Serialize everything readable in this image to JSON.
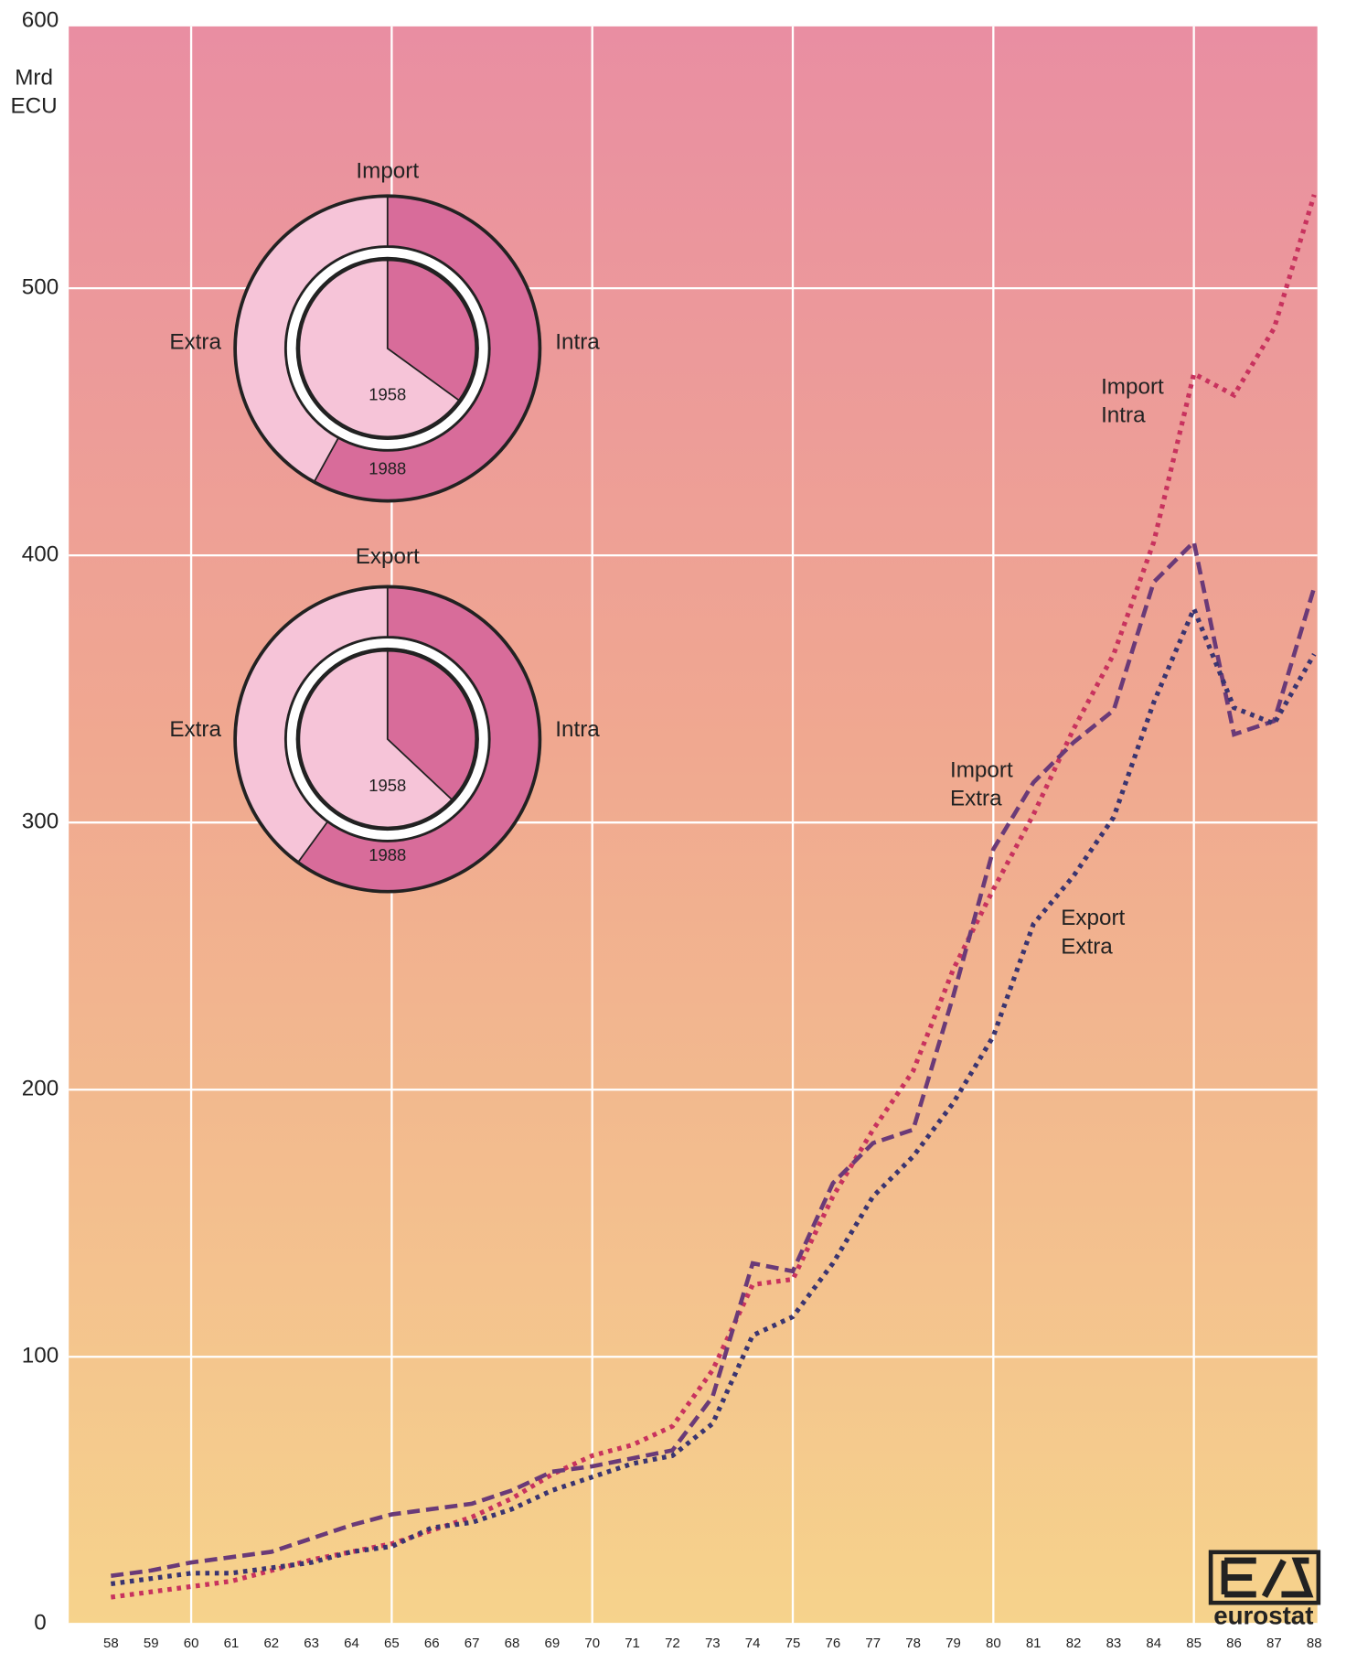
{
  "chart_data": [
    {
      "type": "line",
      "y_label": "Mrd ECU",
      "x": [
        58,
        59,
        60,
        61,
        62,
        63,
        64,
        65,
        66,
        67,
        68,
        69,
        70,
        71,
        72,
        73,
        74,
        75,
        76,
        77,
        78,
        79,
        80,
        81,
        82,
        83,
        84,
        85,
        86,
        87,
        88
      ],
      "xlim": [
        58,
        88
      ],
      "xticks": [
        58,
        59,
        60,
        61,
        62,
        63,
        64,
        65,
        66,
        67,
        68,
        69,
        70,
        71,
        72,
        73,
        74,
        75,
        76,
        77,
        78,
        79,
        80,
        81,
        82,
        83,
        84,
        85,
        86,
        87,
        88
      ],
      "ylim": [
        0,
        600
      ],
      "yticks": [
        0,
        100,
        200,
        300,
        400,
        500,
        600
      ],
      "grid": true,
      "series": [
        {
          "name": "Import Intra",
          "color": "#c8325e",
          "style": "dotted",
          "values": [
            10,
            12,
            14,
            16,
            20,
            24,
            27,
            30,
            35,
            40,
            47,
            56,
            63,
            67,
            74,
            95,
            127,
            129,
            160,
            185,
            207,
            245,
            275,
            303,
            335,
            363,
            405,
            468,
            460,
            485,
            535
          ]
        },
        {
          "name": "Import Extra",
          "color": "#6a3a78",
          "style": "dashed",
          "values": [
            18,
            20,
            23,
            25,
            27,
            32,
            37,
            41,
            43,
            45,
            50,
            57,
            59,
            62,
            65,
            85,
            135,
            132,
            165,
            180,
            185,
            235,
            290,
            315,
            330,
            342,
            390,
            405,
            333,
            338,
            388
          ]
        },
        {
          "name": "Export Extra",
          "color": "#3a3470",
          "style": "dotted",
          "values": [
            15,
            17,
            19,
            19,
            21,
            23,
            27,
            29,
            36,
            38,
            43,
            50,
            55,
            60,
            63,
            75,
            108,
            115,
            135,
            160,
            175,
            195,
            220,
            262,
            280,
            302,
            345,
            380,
            343,
            337,
            363
          ]
        }
      ]
    },
    {
      "type": "donut",
      "title": "Import",
      "categories": [
        "Intra",
        "Extra"
      ],
      "colors": [
        "#d86c9a",
        "#f6c4d8"
      ],
      "rings": [
        {
          "name": "1958",
          "values": [
            35,
            65
          ]
        },
        {
          "name": "1988",
          "values": [
            58,
            42
          ]
        }
      ]
    },
    {
      "type": "donut",
      "title": "Export",
      "categories": [
        "Intra",
        "Extra"
      ],
      "colors": [
        "#d86c9a",
        "#f6c4d8"
      ],
      "rings": [
        {
          "name": "1958",
          "values": [
            37,
            63
          ]
        },
        {
          "name": "1988",
          "values": [
            60,
            40
          ]
        }
      ]
    }
  ],
  "logo": "eurostat"
}
